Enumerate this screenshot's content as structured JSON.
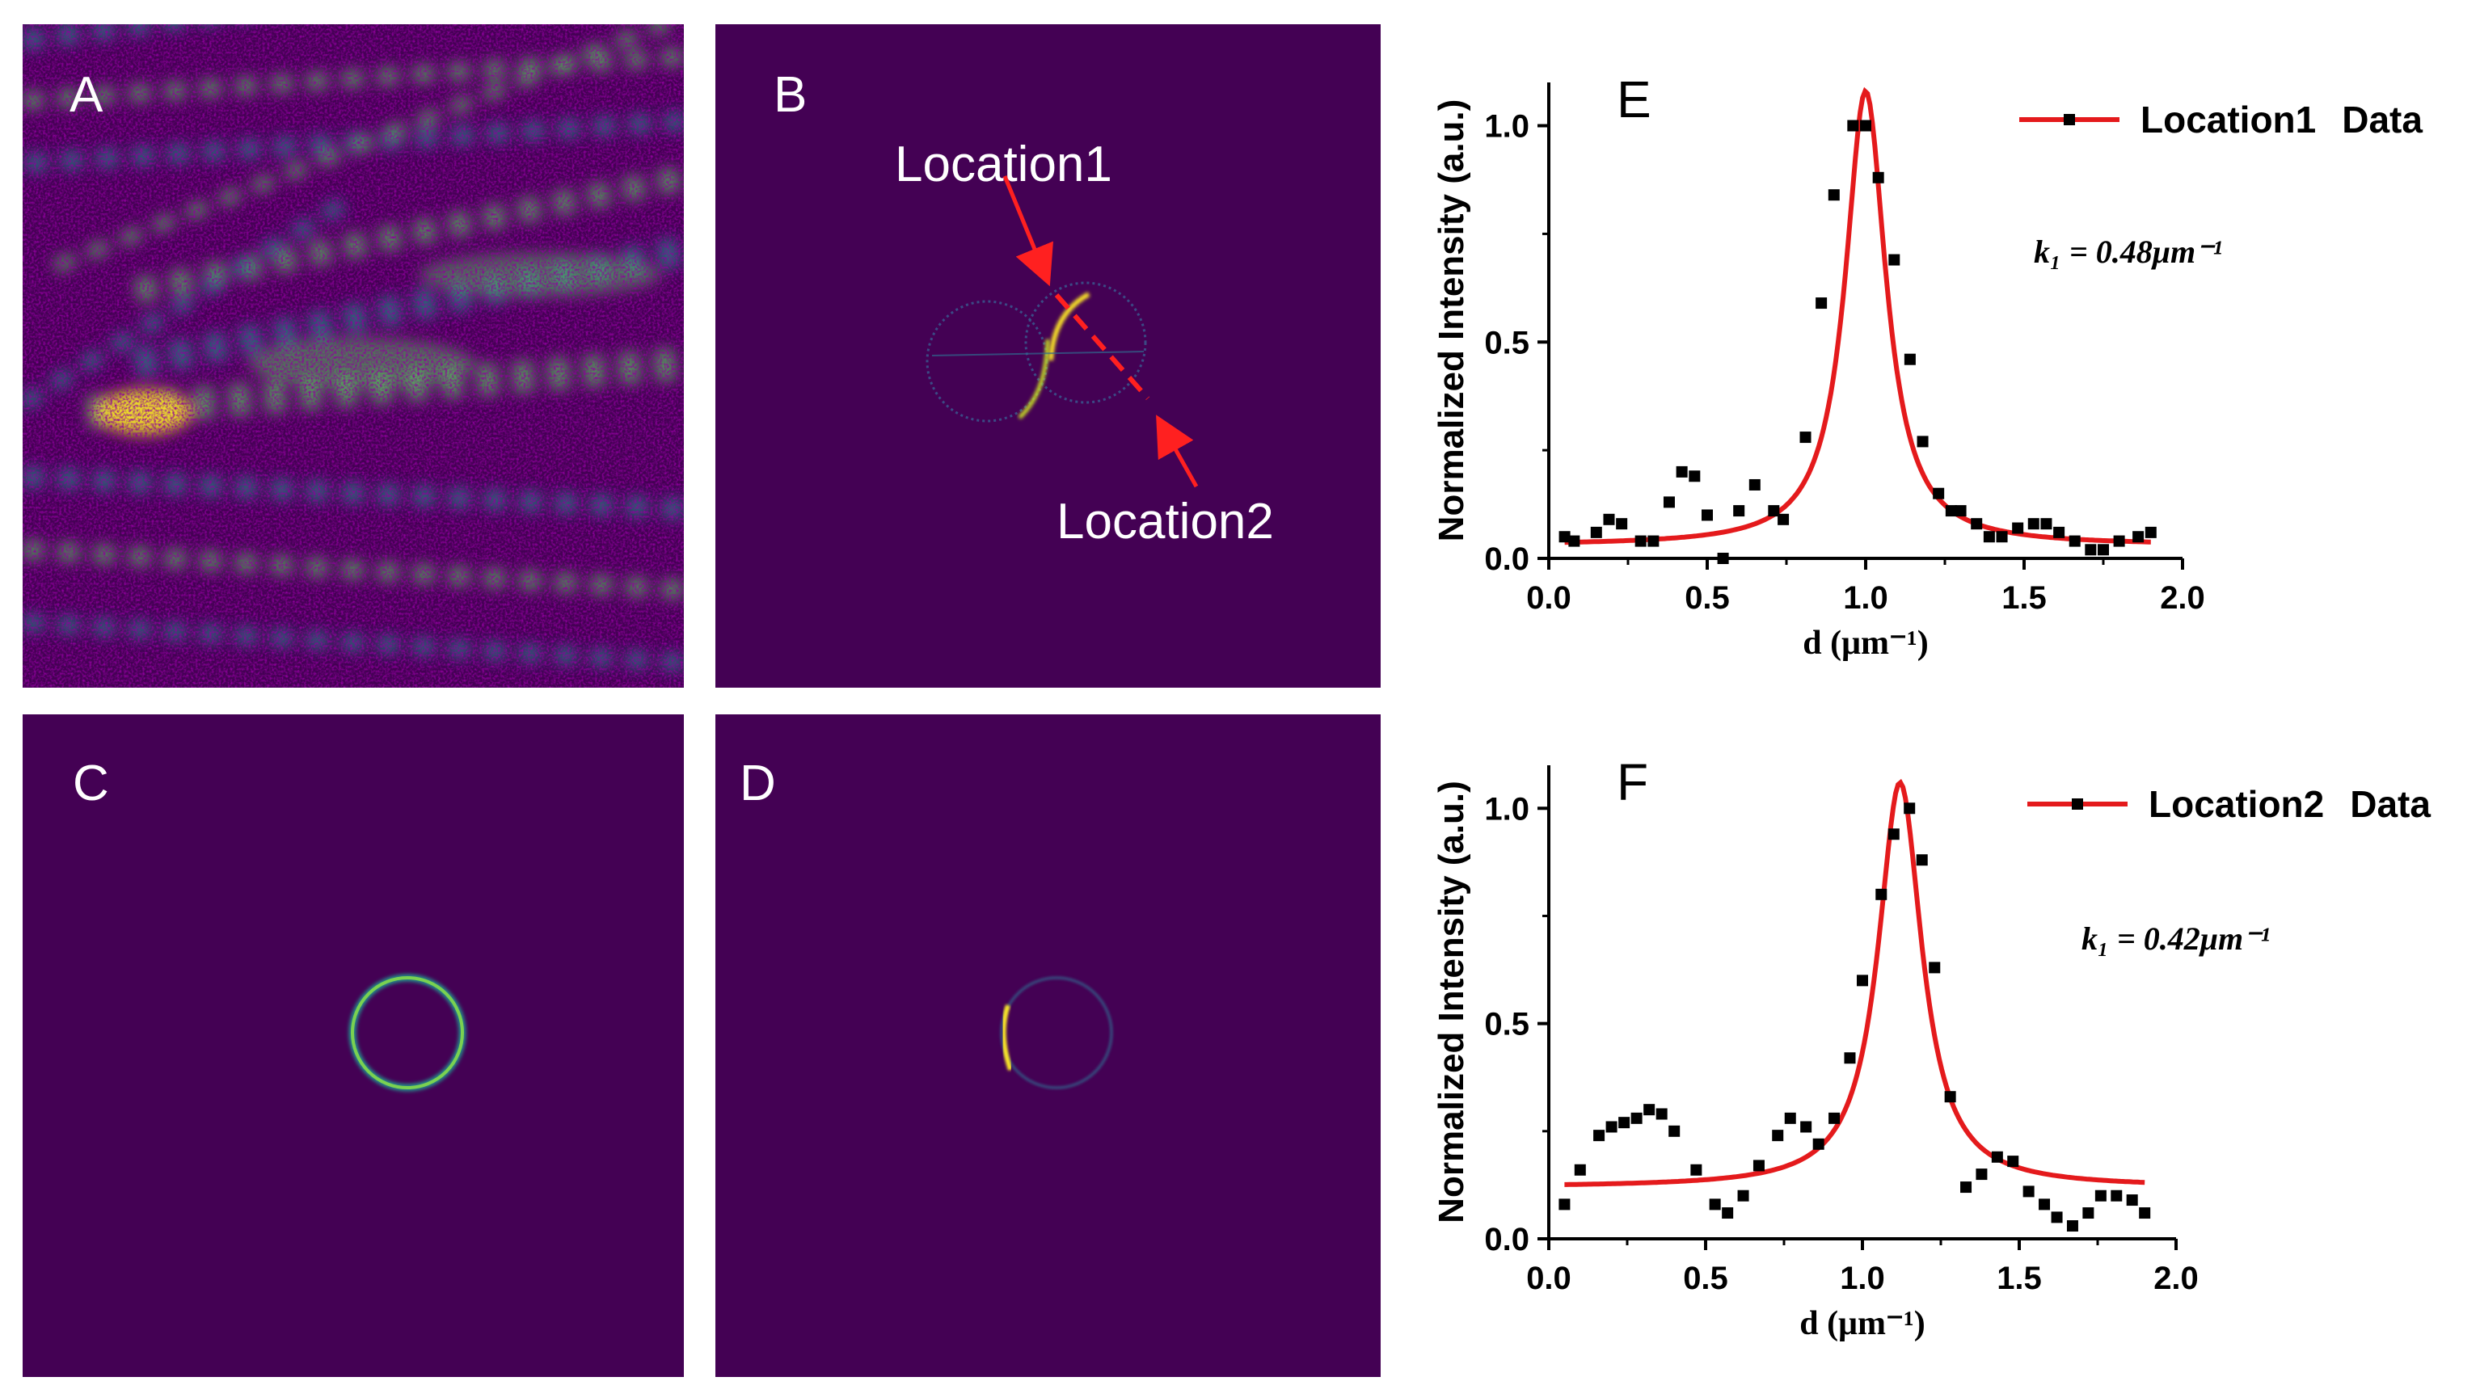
{
  "colors": {
    "background_panel": "#440154",
    "field_teal": "#21918c",
    "field_green": "#5ec962",
    "field_yellow": "#fde725",
    "fit_line": "#e41a1c",
    "marker": "#000000",
    "arrow": "#ff2020"
  },
  "panels": {
    "a": {
      "letter": "A"
    },
    "b": {
      "letter": "B",
      "location1_label": "Location1",
      "location2_label": "Location2"
    },
    "c": {
      "letter": "C"
    },
    "d": {
      "letter": "D"
    }
  },
  "chart_data": [
    {
      "panel_letter": "E",
      "type": "scatter",
      "title": "",
      "xlabel": "d (μm⁻¹)",
      "ylabel": "Normalized Intensity (a.u.)",
      "xlim": [
        0.0,
        2.0
      ],
      "ylim": [
        0.0,
        1.1
      ],
      "xticks": [
        0.0,
        0.5,
        1.0,
        1.5,
        2.0
      ],
      "xtick_labels": [
        "0.0",
        "0.5",
        "1.0",
        "1.5",
        "2.0"
      ],
      "yticks": [
        0.0,
        0.5,
        1.0
      ],
      "ytick_labels": [
        "0.0",
        "0.5",
        "1.0"
      ],
      "legend": {
        "position": "top-right",
        "entries": [
          "Location1",
          "Data"
        ]
      },
      "annotation": "k₁ = 0.48μm⁻¹",
      "fit": {
        "model": "lorentzian",
        "center": 1.0,
        "hwhm": 0.078,
        "amplitude": 1.05,
        "baseline": 0.03
      },
      "series": [
        {
          "name": "Data",
          "points": [
            [
              0.05,
              0.05
            ],
            [
              0.08,
              0.04
            ],
            [
              0.15,
              0.06
            ],
            [
              0.19,
              0.09
            ],
            [
              0.23,
              0.08
            ],
            [
              0.29,
              0.04
            ],
            [
              0.33,
              0.04
            ],
            [
              0.38,
              0.13
            ],
            [
              0.42,
              0.2
            ],
            [
              0.46,
              0.19
            ],
            [
              0.5,
              0.1
            ],
            [
              0.55,
              0.0
            ],
            [
              0.6,
              0.11
            ],
            [
              0.65,
              0.17
            ],
            [
              0.71,
              0.11
            ],
            [
              0.74,
              0.09
            ],
            [
              0.81,
              0.28
            ],
            [
              0.86,
              0.59
            ],
            [
              0.9,
              0.84
            ],
            [
              0.96,
              1.0
            ],
            [
              1.0,
              1.0
            ],
            [
              1.04,
              0.88
            ],
            [
              1.09,
              0.69
            ],
            [
              1.14,
              0.46
            ],
            [
              1.18,
              0.27
            ],
            [
              1.23,
              0.15
            ],
            [
              1.27,
              0.11
            ],
            [
              1.3,
              0.11
            ],
            [
              1.35,
              0.08
            ],
            [
              1.39,
              0.05
            ],
            [
              1.43,
              0.05
            ],
            [
              1.48,
              0.07
            ],
            [
              1.53,
              0.08
            ],
            [
              1.57,
              0.08
            ],
            [
              1.61,
              0.06
            ],
            [
              1.66,
              0.04
            ],
            [
              1.71,
              0.02
            ],
            [
              1.75,
              0.02
            ],
            [
              1.8,
              0.04
            ],
            [
              1.86,
              0.05
            ],
            [
              1.9,
              0.06
            ]
          ]
        }
      ]
    },
    {
      "panel_letter": "F",
      "type": "scatter",
      "title": "",
      "xlabel": "d (μm⁻¹)",
      "ylabel": "Normalized Intensity (a.u.)",
      "xlim": [
        0.0,
        2.0
      ],
      "ylim": [
        0.0,
        1.1
      ],
      "xticks": [
        0.0,
        0.5,
        1.0,
        1.5,
        2.0
      ],
      "xtick_labels": [
        "0.0",
        "0.5",
        "1.0",
        "1.5",
        "2.0"
      ],
      "yticks": [
        0.0,
        0.5,
        1.0
      ],
      "ytick_labels": [
        "0.0",
        "0.5",
        "1.0"
      ],
      "legend": {
        "position": "top-right",
        "entries": [
          "Location2",
          "Data"
        ]
      },
      "annotation": "k₁ = 0.42μm⁻¹",
      "fit": {
        "model": "lorentzian",
        "center": 1.12,
        "hwhm": 0.085,
        "amplitude": 0.94,
        "baseline": 0.12
      },
      "series": [
        {
          "name": "Data",
          "points": [
            [
              0.05,
              0.08
            ],
            [
              0.1,
              0.16
            ],
            [
              0.16,
              0.24
            ],
            [
              0.2,
              0.26
            ],
            [
              0.24,
              0.27
            ],
            [
              0.28,
              0.28
            ],
            [
              0.32,
              0.3
            ],
            [
              0.36,
              0.29
            ],
            [
              0.4,
              0.25
            ],
            [
              0.47,
              0.16
            ],
            [
              0.53,
              0.08
            ],
            [
              0.57,
              0.06
            ],
            [
              0.62,
              0.1
            ],
            [
              0.67,
              0.17
            ],
            [
              0.73,
              0.24
            ],
            [
              0.77,
              0.28
            ],
            [
              0.82,
              0.26
            ],
            [
              0.86,
              0.22
            ],
            [
              0.91,
              0.28
            ],
            [
              0.96,
              0.42
            ],
            [
              1.0,
              0.6
            ],
            [
              1.06,
              0.8
            ],
            [
              1.1,
              0.94
            ],
            [
              1.15,
              1.0
            ],
            [
              1.19,
              0.88
            ],
            [
              1.23,
              0.63
            ],
            [
              1.28,
              0.33
            ],
            [
              1.33,
              0.12
            ],
            [
              1.38,
              0.15
            ],
            [
              1.43,
              0.19
            ],
            [
              1.48,
              0.18
            ],
            [
              1.53,
              0.11
            ],
            [
              1.58,
              0.08
            ],
            [
              1.62,
              0.05
            ],
            [
              1.67,
              0.03
            ],
            [
              1.72,
              0.06
            ],
            [
              1.76,
              0.1
            ],
            [
              1.81,
              0.1
            ],
            [
              1.86,
              0.09
            ],
            [
              1.9,
              0.06
            ]
          ]
        }
      ]
    }
  ]
}
